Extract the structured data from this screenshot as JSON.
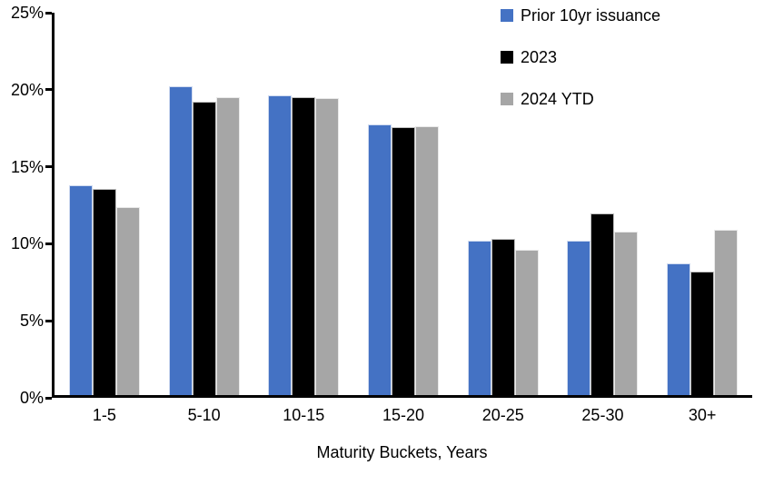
{
  "chart_data": {
    "type": "bar",
    "categories": [
      "1-5",
      "5-10",
      "10-15",
      "15-20",
      "20-25",
      "25-30",
      "30+"
    ],
    "series": [
      {
        "name": "Prior 10yr issuance",
        "color": "#4472C4",
        "values": [
          13.7,
          20.2,
          19.6,
          17.7,
          10.1,
          10.1,
          8.6
        ]
      },
      {
        "name": "2023",
        "color": "#000000",
        "values": [
          13.5,
          19.2,
          19.5,
          17.5,
          10.2,
          11.9,
          8.1
        ]
      },
      {
        "name": "2024 YTD",
        "color": "#A6A6A6",
        "values": [
          12.3,
          19.5,
          19.4,
          17.6,
          9.5,
          10.7,
          10.8
        ]
      }
    ],
    "title": "",
    "xlabel": "Maturity Buckets, Years",
    "ylabel": "",
    "ylim": [
      0,
      25
    ],
    "yticks": [
      0,
      5,
      10,
      15,
      20,
      25
    ],
    "ytick_labels": [
      "0%",
      "5%",
      "10%",
      "15%",
      "20%",
      "25%"
    ],
    "grid": false,
    "legend_position": "top-right",
    "background_color": "#FFFFFF",
    "axis_color": "#000000"
  }
}
